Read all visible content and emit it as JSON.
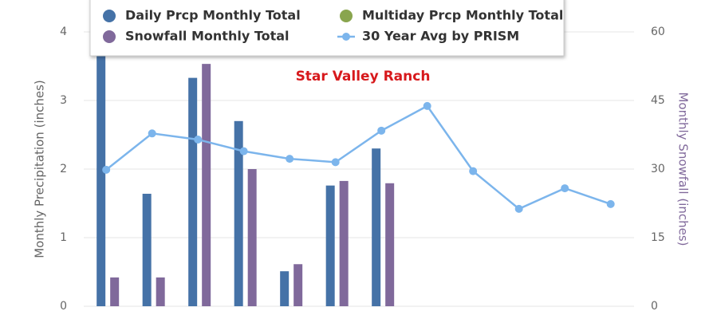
{
  "chart_data": {
    "type": "bar",
    "title": "Star Valley Ranch",
    "categories": [
      null,
      null,
      null,
      null,
      null,
      null,
      null,
      null,
      null,
      null,
      null,
      null
    ],
    "ylabel": "Monthly Precipitation (inches)",
    "y2label": "Monthly Snowfall (inches)",
    "ylim": [
      0,
      4
    ],
    "yticks": [
      0,
      1,
      2,
      3,
      4
    ],
    "y2lim": [
      0,
      60
    ],
    "y2ticks": [
      0,
      15,
      30,
      45,
      60
    ],
    "grid": true,
    "series": [
      {
        "name": "Daily Prcp Monthly Total",
        "color": "#4572a7",
        "type": "bar",
        "values": [
          3.9,
          1.64,
          3.33,
          2.7,
          0.51,
          1.76,
          2.3,
          null,
          null,
          null,
          null,
          null
        ]
      },
      {
        "name": "Multiday Prcp Monthly Total",
        "color": "#89a54e",
        "type": "bar",
        "values": [
          null,
          null,
          null,
          null,
          null,
          null,
          null,
          null,
          null,
          null,
          null,
          null
        ]
      },
      {
        "name": "Snowfall Monthly Total",
        "color": "#80699b",
        "type": "bar",
        "axis": "y2",
        "values": [
          6.3,
          6.3,
          53,
          30,
          9.2,
          27.4,
          26.9,
          null,
          null,
          null,
          null,
          null
        ]
      },
      {
        "name": "30 Year Avg by PRISM",
        "color": "#7cb5ec",
        "type": "line",
        "values": [
          1.99,
          2.52,
          2.43,
          2.26,
          2.15,
          2.1,
          2.56,
          2.92,
          1.97,
          1.42,
          1.72,
          1.49
        ]
      }
    ]
  }
}
